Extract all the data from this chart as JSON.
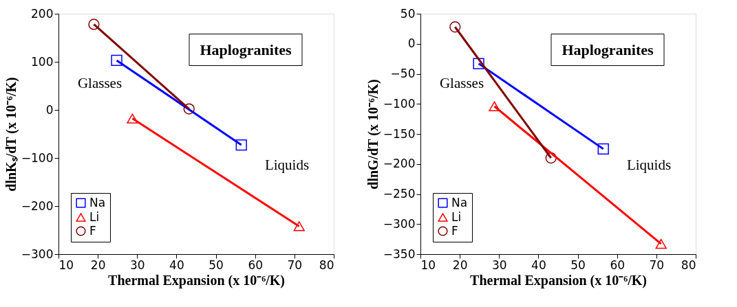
{
  "chart_data": [
    {
      "type": "line",
      "xlabel": "Thermal Expansion (x 10⁻⁶/K)",
      "ylabel": "dlnKₛ/dT (x 10⁻⁶/K)",
      "xlim": [
        10,
        80
      ],
      "xticks": [
        10,
        20,
        30,
        40,
        50,
        60,
        70,
        80
      ],
      "ylim": [
        -300,
        200
      ],
      "yticks": [
        -300,
        -200,
        -100,
        0,
        100,
        200
      ],
      "grid": false,
      "legend": "bottom left",
      "annotations": [
        "Haplogranites",
        "Glasses",
        "Liquids"
      ],
      "series": [
        {
          "name": "Na",
          "color": "#0000ff",
          "marker": "square",
          "x": [
            24.8,
            56.5
          ],
          "values": [
            103,
            -73
          ]
        },
        {
          "name": "Li",
          "color": "#ff0000",
          "marker": "triangle",
          "x": [
            28.8,
            71.2
          ],
          "values": [
            -18,
            -242
          ]
        },
        {
          "name": "F",
          "color": "#800000",
          "marker": "circle",
          "x": [
            19,
            43.2
          ],
          "values": [
            178,
            2
          ]
        }
      ]
    },
    {
      "type": "line",
      "xlabel": "Thermal Expansion (x 10⁻⁶/K)",
      "ylabel": "dlnG/dT (x 10⁻⁶/K)",
      "xlim": [
        10,
        80
      ],
      "xticks": [
        10,
        20,
        30,
        40,
        50,
        60,
        70,
        80
      ],
      "ylim": [
        -350,
        50
      ],
      "yticks": [
        -350,
        -300,
        -250,
        -200,
        -150,
        -100,
        -50,
        0,
        50
      ],
      "grid": false,
      "legend": "bottom left",
      "annotations": [
        "Haplogranites",
        "Glasses",
        "Liquids"
      ],
      "series": [
        {
          "name": "Na",
          "color": "#0000ff",
          "marker": "square",
          "x": [
            24.8,
            56.5
          ],
          "values": [
            -33,
            -175
          ]
        },
        {
          "name": "Li",
          "color": "#ff0000",
          "marker": "triangle",
          "x": [
            28.8,
            71.2
          ],
          "values": [
            -104,
            -333
          ]
        },
        {
          "name": "F",
          "color": "#800000",
          "marker": "circle",
          "x": [
            18.8,
            43.2
          ],
          "values": [
            28,
            -190
          ]
        }
      ]
    }
  ]
}
